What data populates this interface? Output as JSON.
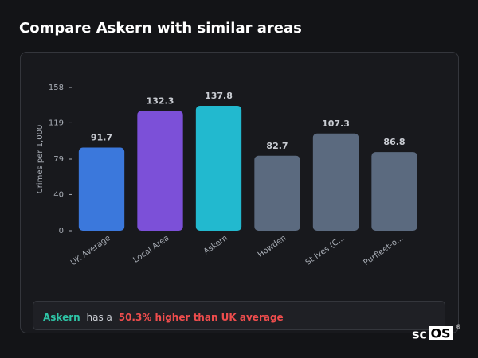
{
  "chart_data": {
    "type": "bar",
    "title": "Compare Askern with similar areas",
    "y_label": "Crimes per 1,000",
    "categories": [
      "UK Average",
      "Local Area",
      "Askern",
      "Howden",
      "St Ives (C...",
      "Purfleet-o..."
    ],
    "values": [
      91.7,
      132.3,
      137.8,
      82.7,
      107.3,
      86.8
    ],
    "colors": [
      "#3b78dc",
      "#7c50d8",
      "#22b9cf",
      "#5b6a7f",
      "#5b6a7f",
      "#5b6a7f"
    ],
    "ylim": [
      0,
      158
    ],
    "yticks": [
      0,
      40,
      79,
      119,
      158
    ],
    "grid": false
  },
  "note": {
    "subject": "Askern",
    "middle": "has a",
    "highlight": "50.3% higher than UK average"
  },
  "logo": {
    "left": "sc",
    "right": "OS",
    "mark": "®"
  }
}
